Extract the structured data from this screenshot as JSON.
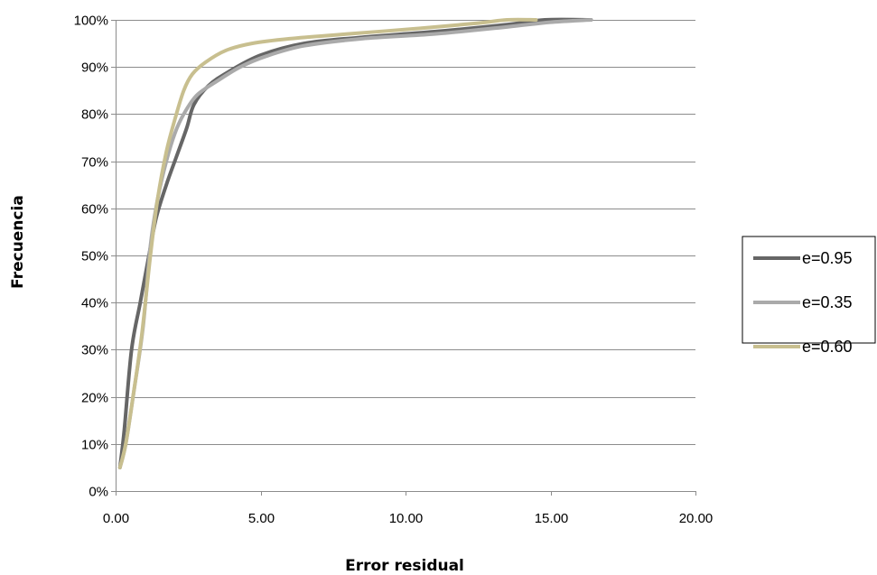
{
  "chart_data": {
    "type": "line",
    "title": "",
    "xlabel": "Error residual",
    "ylabel": "Frecuencia",
    "xlim": [
      0,
      20
    ],
    "ylim": [
      0,
      1
    ],
    "x_ticks": [
      0,
      5,
      10,
      15,
      20
    ],
    "x_tick_labels": [
      "0.00",
      "5.00",
      "10.00",
      "15.00",
      "20.00"
    ],
    "y_ticks": [
      0,
      0.1,
      0.2,
      0.3,
      0.4,
      0.5,
      0.6,
      0.7,
      0.8,
      0.9,
      1.0
    ],
    "y_tick_labels": [
      "0%",
      "10%",
      "20%",
      "30%",
      "40%",
      "50%",
      "60%",
      "70%",
      "80%",
      "90%",
      "100%"
    ],
    "grid": "horizontal",
    "legend_position": "right",
    "series": [
      {
        "name": "e=0.95",
        "color": "#666666",
        "x": [
          0.15,
          0.3,
          0.55,
          0.85,
          1.15,
          1.4,
          1.75,
          2.1,
          2.45,
          2.7,
          3.2,
          3.9,
          5.0,
          6.5,
          8.5,
          11.0,
          13.5,
          14.8,
          16.4
        ],
        "y": [
          0.05,
          0.13,
          0.3,
          0.4,
          0.5,
          0.58,
          0.65,
          0.71,
          0.77,
          0.82,
          0.86,
          0.89,
          0.925,
          0.95,
          0.963,
          0.975,
          0.99,
          1.0,
          1.0
        ]
      },
      {
        "name": "e=0.35",
        "color": "#aaaaaa",
        "x": [
          0.15,
          0.35,
          0.65,
          0.95,
          1.2,
          1.45,
          1.75,
          2.05,
          2.35,
          2.8,
          3.5,
          4.3,
          5.2,
          6.5,
          8.5,
          11.0,
          13.5,
          15.0,
          16.4
        ],
        "y": [
          0.05,
          0.1,
          0.22,
          0.35,
          0.52,
          0.62,
          0.7,
          0.76,
          0.8,
          0.84,
          0.87,
          0.9,
          0.923,
          0.945,
          0.96,
          0.97,
          0.985,
          0.995,
          1.0
        ]
      },
      {
        "name": "e=0.60",
        "color": "#c8bf8f",
        "x": [
          0.15,
          0.35,
          0.6,
          0.9,
          1.2,
          1.45,
          1.75,
          2.05,
          2.35,
          2.65,
          3.1,
          3.8,
          4.7,
          6.0,
          8.0,
          10.5,
          12.5,
          13.5,
          14.5
        ],
        "y": [
          0.05,
          0.1,
          0.2,
          0.33,
          0.5,
          0.62,
          0.72,
          0.79,
          0.85,
          0.885,
          0.91,
          0.935,
          0.95,
          0.96,
          0.97,
          0.982,
          0.993,
          1.0,
          1.0
        ]
      }
    ]
  }
}
